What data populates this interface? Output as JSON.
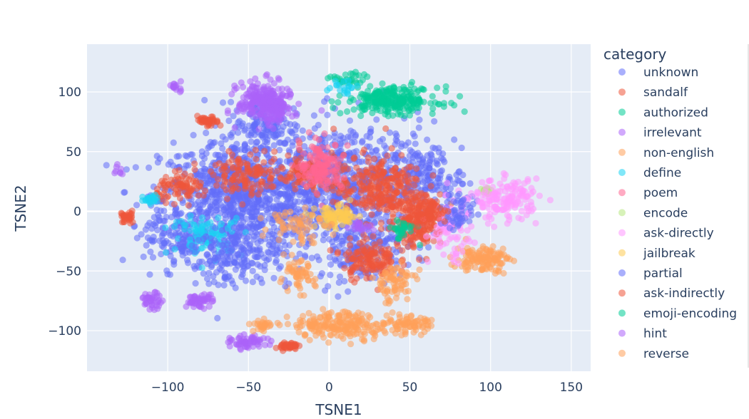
{
  "chart_data": {
    "type": "scatter",
    "xlabel": "TSNE1",
    "ylabel": "TSNE2",
    "xlim": [
      -150,
      162
    ],
    "ylim": [
      -134,
      140
    ],
    "xticks": [
      -100,
      -50,
      0,
      50,
      100,
      150
    ],
    "xtick_labels": [
      "−100",
      "−50",
      "0",
      "50",
      "100",
      "150"
    ],
    "yticks": [
      -100,
      -50,
      0,
      50,
      100
    ],
    "ytick_labels": [
      "−100",
      "−50",
      "0",
      "50",
      "100"
    ],
    "grid": true,
    "legend": {
      "title": "category",
      "placement": "right",
      "entries": [
        {
          "name": "unknown",
          "color": "#636efa"
        },
        {
          "name": "sandalf",
          "color": "#EF553B"
        },
        {
          "name": "authorized",
          "color": "#00cc96"
        },
        {
          "name": "irrelevant",
          "color": "#ab63fa"
        },
        {
          "name": "non-english",
          "color": "#FFA15A"
        },
        {
          "name": "define",
          "color": "#19d3f3"
        },
        {
          "name": "poem",
          "color": "#FF6692"
        },
        {
          "name": "encode",
          "color": "#B6E880"
        },
        {
          "name": "ask-directly",
          "color": "#FF97FF"
        },
        {
          "name": "jailbreak",
          "color": "#FECB52"
        },
        {
          "name": "partial",
          "color": "#636efa"
        },
        {
          "name": "ask-indirectly",
          "color": "#EF553B"
        },
        {
          "name": "emoji-encoding",
          "color": "#00cc96"
        },
        {
          "name": "hint",
          "color": "#ab63fa"
        },
        {
          "name": "reverse",
          "color": "#FFA15A"
        }
      ]
    },
    "series": [
      {
        "name": "unknown",
        "color": "#636efa",
        "clusters": [
          [
            -55,
            10,
            45,
            45,
            900
          ],
          [
            10,
            20,
            50,
            50,
            700
          ],
          [
            -95,
            -20,
            18,
            25,
            120
          ],
          [
            -40,
            70,
            20,
            20,
            120
          ],
          [
            20,
            -30,
            25,
            25,
            150
          ],
          [
            60,
            30,
            20,
            20,
            120
          ]
        ]
      },
      {
        "name": "sandalf",
        "color": "#EF553B",
        "clusters": [
          [
            30,
            20,
            25,
            25,
            280
          ],
          [
            55,
            -10,
            15,
            18,
            160
          ],
          [
            25,
            -40,
            15,
            15,
            140
          ],
          [
            -75,
            75,
            6,
            4,
            40
          ],
          [
            -25,
            -113,
            5,
            3,
            40
          ],
          [
            -90,
            20,
            15,
            10,
            80
          ],
          [
            -15,
            30,
            15,
            15,
            80
          ],
          [
            -125,
            -5,
            4,
            5,
            30
          ]
        ]
      },
      {
        "name": "authorized",
        "color": "#00cc96",
        "clusters": [
          [
            40,
            93,
            25,
            10,
            230
          ],
          [
            12,
            110,
            10,
            6,
            30
          ],
          [
            45,
            -15,
            8,
            8,
            30
          ]
        ]
      },
      {
        "name": "irrelevant",
        "color": "#ab63fa",
        "clusters": [
          [
            -40,
            92,
            15,
            15,
            230
          ],
          [
            -80,
            -75,
            8,
            5,
            50
          ],
          [
            -50,
            -110,
            10,
            5,
            60
          ],
          [
            -110,
            -75,
            6,
            6,
            40
          ],
          [
            -95,
            105,
            6,
            4,
            15
          ],
          [
            -130,
            35,
            3,
            5,
            8
          ],
          [
            20,
            -12,
            6,
            5,
            20
          ]
        ]
      },
      {
        "name": "non-english",
        "color": "#FFA15A",
        "clusters": [
          [
            10,
            -95,
            30,
            10,
            220
          ],
          [
            95,
            -40,
            15,
            10,
            130
          ],
          [
            40,
            -60,
            12,
            15,
            70
          ],
          [
            -20,
            -55,
            10,
            12,
            60
          ],
          [
            50,
            -95,
            12,
            6,
            60
          ],
          [
            -40,
            -95,
            8,
            4,
            30
          ]
        ]
      },
      {
        "name": "define",
        "color": "#19d3f3",
        "clusters": [
          [
            -75,
            -20,
            20,
            15,
            90
          ],
          [
            -110,
            10,
            6,
            4,
            25
          ],
          [
            10,
            105,
            8,
            6,
            20
          ]
        ]
      },
      {
        "name": "poem",
        "color": "#FF6692",
        "clusters": [
          [
            -5,
            38,
            12,
            18,
            150
          ]
        ]
      },
      {
        "name": "encode",
        "color": "#B6E880",
        "clusters": [
          [
            97,
            17,
            4,
            3,
            15
          ]
        ]
      },
      {
        "name": "ask-directly",
        "color": "#FF97FF",
        "clusters": [
          [
            110,
            10,
            18,
            15,
            160
          ],
          [
            75,
            -15,
            12,
            25,
            90
          ]
        ]
      },
      {
        "name": "jailbreak",
        "color": "#FECB52",
        "clusters": [
          [
            5,
            -5,
            12,
            8,
            90
          ]
        ]
      },
      {
        "name": "partial",
        "color": "#636efa",
        "clusters": [
          [
            -60,
            -40,
            25,
            20,
            150
          ],
          [
            80,
            0,
            10,
            15,
            50
          ]
        ]
      },
      {
        "name": "ask-indirectly",
        "color": "#EF553B",
        "clusters": [
          [
            -50,
            30,
            20,
            15,
            120
          ],
          [
            60,
            0,
            12,
            10,
            90
          ]
        ]
      },
      {
        "name": "emoji-encoding",
        "color": "#00cc96",
        "clusters": [
          [
            30,
            95,
            10,
            6,
            40
          ]
        ]
      },
      {
        "name": "hint",
        "color": "#ab63fa",
        "clusters": [
          [
            -35,
            85,
            10,
            10,
            60
          ]
        ]
      },
      {
        "name": "reverse",
        "color": "#FFA15A",
        "clusters": [
          [
            -20,
            -10,
            15,
            15,
            60
          ]
        ]
      }
    ]
  }
}
